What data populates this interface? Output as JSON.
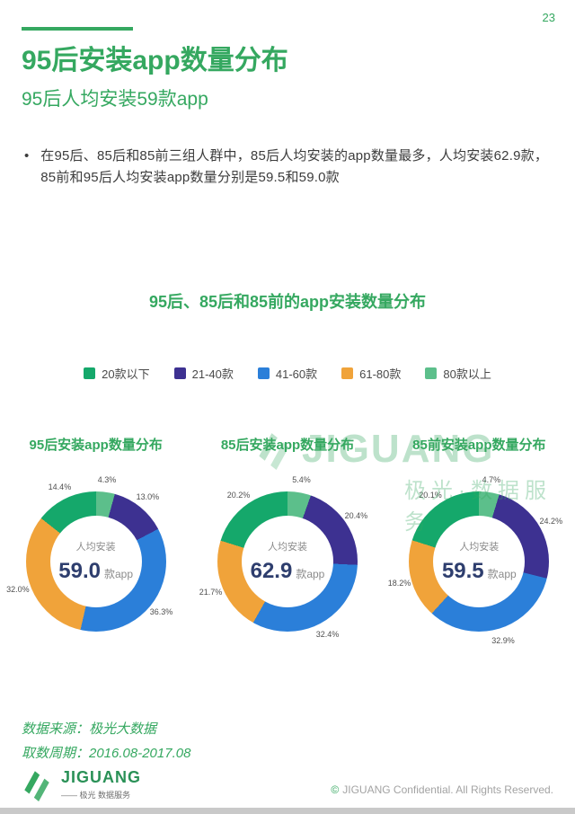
{
  "page": {
    "number": "23"
  },
  "header": {
    "title": "95后安装app数量分布",
    "subtitle": "95后人均安装59款app",
    "bullet_marker": "•",
    "bullet": "在95后、85后和85前三组人群中，85后人均安装的app数量最多，人均安装62.9款，85前和95后人均安装app数量分别是59.5和59.0款"
  },
  "chart_data": {
    "type": "pie",
    "variant": "donut",
    "title": "95后、85后和85前的app安装数量分布",
    "legend_position": "top",
    "legend": [
      {
        "label": "20款以下",
        "color": "#15a86b"
      },
      {
        "label": "21-40款",
        "color": "#3d3191"
      },
      {
        "label": "41-60款",
        "color": "#2b7fd9"
      },
      {
        "label": "61-80款",
        "color": "#f0a33a"
      },
      {
        "label": "80款以上",
        "color": "#5cbf8b"
      }
    ],
    "draw_order": [
      "80款以上",
      "21-40款",
      "41-60款",
      "61-80款",
      "20款以下"
    ],
    "charts": [
      {
        "title": "95后安装app数量分布",
        "center_label": "人均安装",
        "center_value": "59.0",
        "center_unit": "款app",
        "values": {
          "20款以下": 14.4,
          "21-40款": 13.0,
          "41-60款": 36.3,
          "61-80款": 32.0,
          "80款以上": 4.3
        }
      },
      {
        "title": "85后安装app数量分布",
        "center_label": "人均安装",
        "center_value": "62.9",
        "center_unit": "款app",
        "values": {
          "20款以下": 20.2,
          "21-40款": 20.4,
          "41-60款": 32.4,
          "61-80款": 21.7,
          "80款以上": 5.4
        }
      },
      {
        "title": "85前安装app数量分布",
        "center_label": "人均安装",
        "center_value": "59.5",
        "center_unit": "款app",
        "values": {
          "20款以下": 20.1,
          "21-40款": 24.2,
          "41-60款": 32.9,
          "61-80款": 18.2,
          "80款以上": 4.7
        }
      }
    ]
  },
  "watermark": {
    "brand": "JIGUANG",
    "sub": "极光·数据服务"
  },
  "footer": {
    "source": "数据来源：极光大数据",
    "period": "取数周期：2016.08-2017.08",
    "logo_text": "JIGUANG",
    "logo_sub": "—— 极光 数据服务",
    "copyright_mark": "©",
    "copyright_text": "JIGUANG  Confidential. All Rights Reserved."
  }
}
